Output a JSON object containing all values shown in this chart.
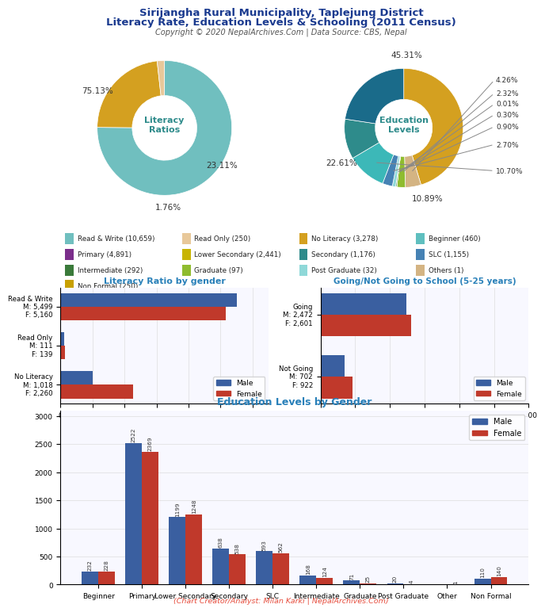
{
  "title_line1": "Sirijangha Rural Municipality, Taplejung District",
  "title_line2": "Literacy Rate, Education Levels & Schooling (2011 Census)",
  "copyright": "Copyright © 2020 NepalArchives.Com | Data Source: CBS, Nepal",
  "literacy_slices": [
    {
      "label": "Read & Write",
      "value": 75.13,
      "color": "#70bfbf",
      "pct": "75.13%"
    },
    {
      "label": "No Literacy",
      "value": 23.11,
      "color": "#d4a020",
      "pct": "23.11%"
    },
    {
      "label": "Read Only",
      "value": 1.76,
      "color": "#e8c89a",
      "pct": "1.76%"
    }
  ],
  "literacy_center_text": "Literacy\nRatios",
  "education_slices": [
    {
      "label": "No Literacy",
      "value": 45.31,
      "color": "#d4a020",
      "pct": "45.31%"
    },
    {
      "label": "Others",
      "value": 4.26,
      "color": "#d4b483",
      "pct": "4.26%"
    },
    {
      "label": "Graduate",
      "value": 2.32,
      "color": "#8fbc2f",
      "pct": "2.32%"
    },
    {
      "label": "Beginner",
      "value": 0.01,
      "color": "#5fbfbf",
      "pct": "0.01%"
    },
    {
      "label": "Intermediate",
      "value": 0.3,
      "color": "#4a8a4a",
      "pct": "0.30%"
    },
    {
      "label": "Post Graduate",
      "value": 0.9,
      "color": "#8fd8d8",
      "pct": "0.90%"
    },
    {
      "label": "SLC",
      "value": 2.7,
      "color": "#4682B4",
      "pct": "2.70%"
    },
    {
      "label": "Secondary",
      "value": 10.7,
      "color": "#3cb8b8",
      "pct": "10.70%"
    },
    {
      "label": "Lower Secondary",
      "value": 10.89,
      "color": "#2e8b8b",
      "pct": "10.89%"
    },
    {
      "label": "Primary",
      "value": 22.61,
      "color": "#1a6b8a",
      "pct": "22.61%"
    }
  ],
  "education_center_text": "Education\nLevels",
  "legend_items": [
    {
      "label": "Read & Write (10,659)",
      "color": "#70bfbf"
    },
    {
      "label": "Read Only (250)",
      "color": "#e8c89a"
    },
    {
      "label": "No Literacy (3,278)",
      "color": "#d4a020"
    },
    {
      "label": "Beginner (460)",
      "color": "#5fbfbf"
    },
    {
      "label": "Primary (4,891)",
      "color": "#7b2e8b"
    },
    {
      "label": "Lower Secondary (2,441)",
      "color": "#c8b400"
    },
    {
      "label": "Secondary (1,176)",
      "color": "#2e8b8b"
    },
    {
      "label": "SLC (1,155)",
      "color": "#4682B4"
    },
    {
      "label": "Intermediate (292)",
      "color": "#3a7a3a"
    },
    {
      "label": "Graduate (97)",
      "color": "#8fbc2f"
    },
    {
      "label": "Post Graduate (32)",
      "color": "#8fd8d8"
    },
    {
      "label": "Others (1)",
      "color": "#d4b483"
    },
    {
      "label": "Non Formal (250)",
      "color": "#c8a000"
    }
  ],
  "literacy_bar_labels": [
    "Read & Write\nM: 5,499\nF: 5,160",
    "Read Only\nM: 111\nF: 139",
    "No Literacy\nM: 1,018\nF: 2,260"
  ],
  "literacy_bar_male": [
    5499,
    111,
    1018
  ],
  "literacy_bar_female": [
    5160,
    139,
    2260
  ],
  "school_bar_labels": [
    "Going\nM: 2,472\nF: 2,601",
    "Not Going\nM: 702\nF: 922"
  ],
  "school_bar_male": [
    2472,
    702
  ],
  "school_bar_female": [
    2601,
    922
  ],
  "edu_gender_cats": [
    "Beginner",
    "Primary",
    "Lower Secondary",
    "Secondary",
    "SLC",
    "Intermediate",
    "Graduate",
    "Post Graduate",
    "Other",
    "Non Formal"
  ],
  "edu_gender_male": [
    232,
    2522,
    1199,
    638,
    593,
    168,
    71,
    20,
    0,
    110
  ],
  "edu_gender_female": [
    228,
    2369,
    1248,
    538,
    562,
    124,
    25,
    4,
    1,
    140
  ],
  "male_color": "#3a5fa0",
  "female_color": "#c0392b",
  "title_color": "#1a3a8f",
  "bar_title_color": "#2980b9",
  "footer_color": "#e74c3c"
}
